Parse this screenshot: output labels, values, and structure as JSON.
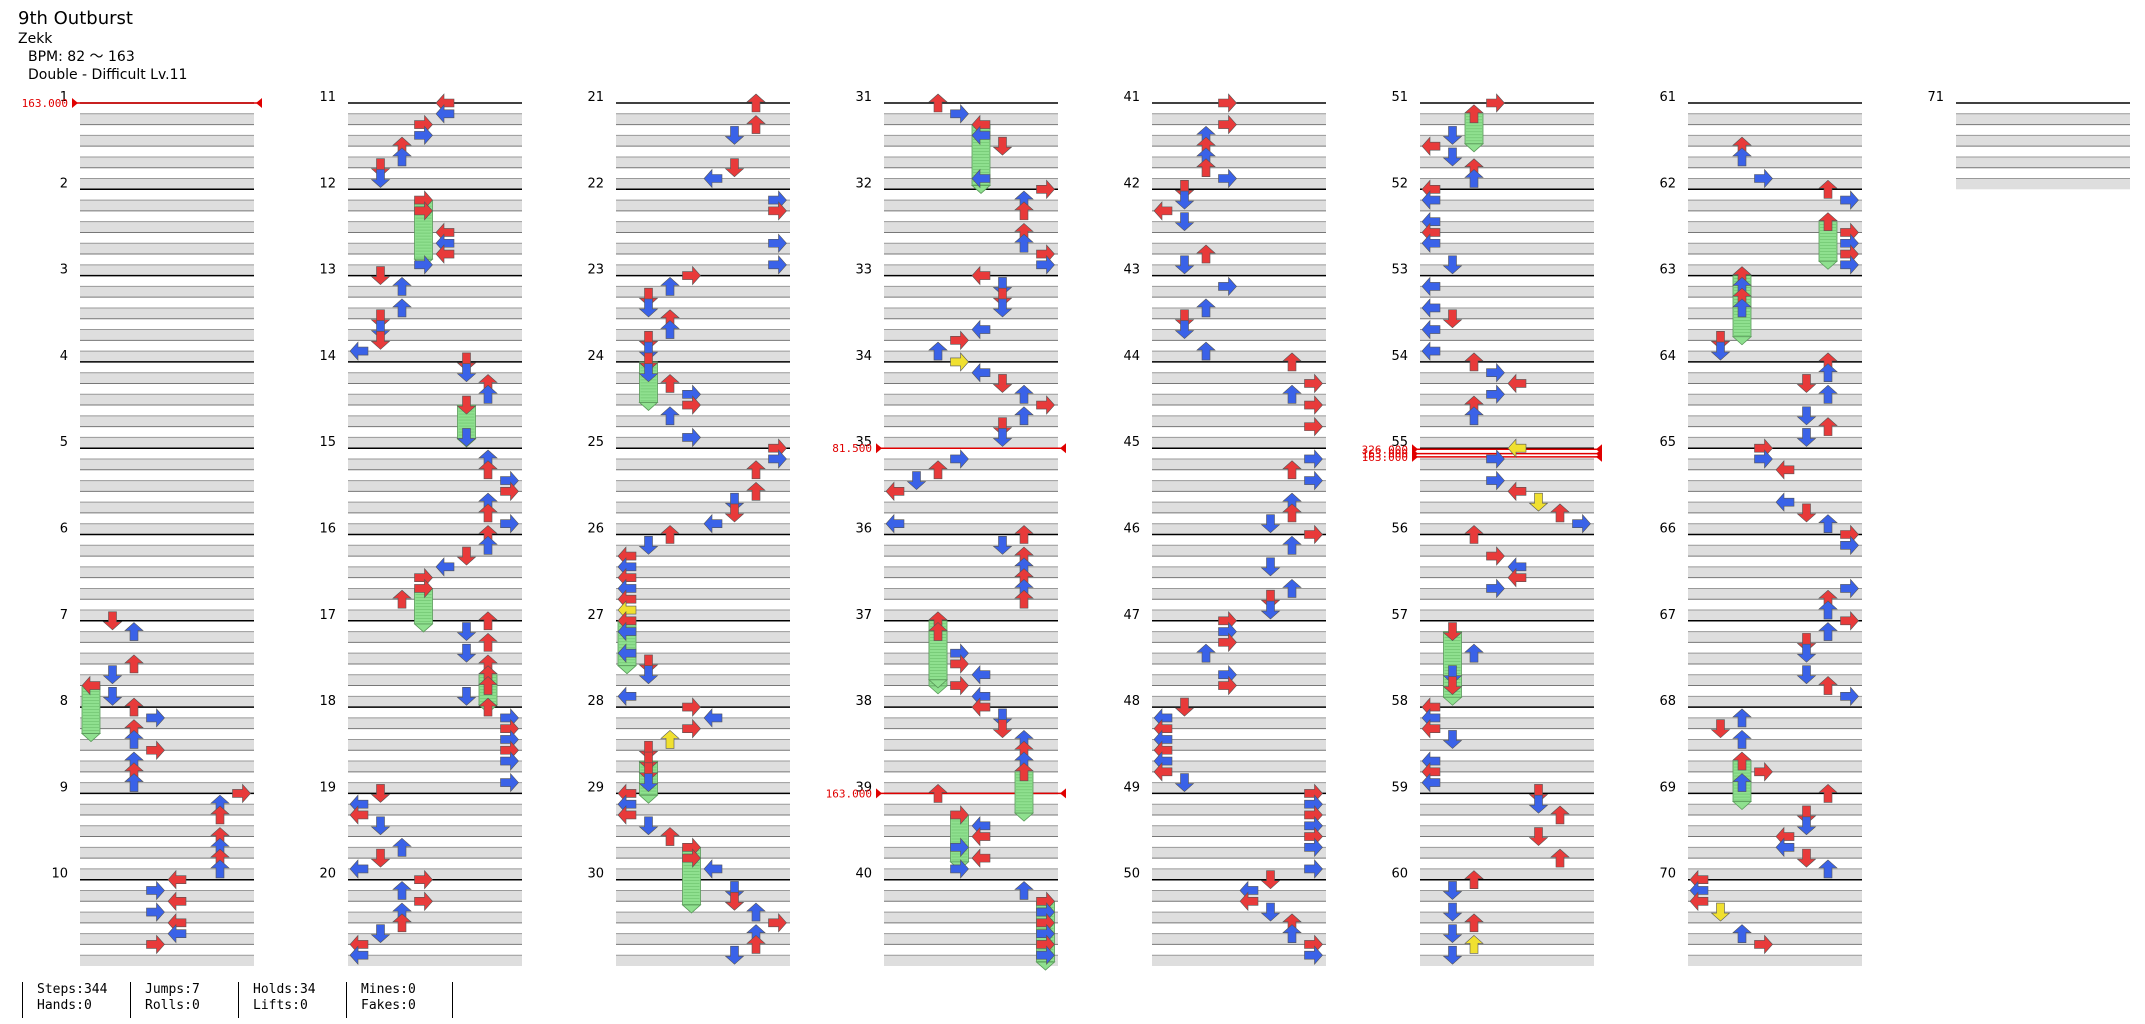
{
  "title": "9th Outburst",
  "artist": "Zekk",
  "bpm_line": "BPM: 82 ～ 163",
  "difficulty_line": "Double - Difficult Lv.11",
  "measure_numbers": [
    1,
    2,
    3,
    4,
    5,
    6,
    7,
    8,
    9,
    10,
    11,
    12,
    13,
    14,
    15,
    16,
    17,
    18,
    19,
    20,
    21,
    22,
    23,
    24,
    25,
    26,
    27,
    28,
    29,
    30,
    31,
    32,
    33,
    34,
    35,
    36,
    37,
    38,
    39,
    40,
    41,
    42,
    43,
    44,
    45,
    46,
    47,
    48,
    49,
    50,
    51,
    52,
    53,
    54,
    55,
    56,
    57,
    58,
    59,
    60,
    61,
    62,
    63,
    64,
    65,
    66,
    67,
    68,
    69,
    70,
    71
  ],
  "bpm_changes": [
    {
      "measure": 1,
      "beat": 0,
      "label": "163.000"
    },
    {
      "measure": 35,
      "beat": 0,
      "label": "81.500"
    },
    {
      "measure": 39,
      "beat": 0,
      "label": "163.000"
    },
    {
      "measure": 55,
      "beat": 0.05,
      "label": "326.000"
    },
    {
      "measure": 55,
      "beat": 0.25,
      "label": "163.000"
    },
    {
      "measure": 55,
      "beat": 0.4,
      "label": "163.000"
    }
  ],
  "colors": {
    "red_arrow": "#e83a3a",
    "blue_arrow": "#3a62e8",
    "yellow_arrow": "#f0e030",
    "hold": "#8fe08f",
    "bpm_marker": "#e00000",
    "stripe": "#dedede"
  },
  "legend_note": "",
  "stats": {
    "steps": "Steps:344",
    "hands": "Hands:0",
    "jumps": "Jumps:7",
    "rolls": "Rolls:0",
    "holds": "Holds:34",
    "lifts": "Lifts:0",
    "mines": "Mines:0",
    "fakes": "Fakes:0"
  }
}
